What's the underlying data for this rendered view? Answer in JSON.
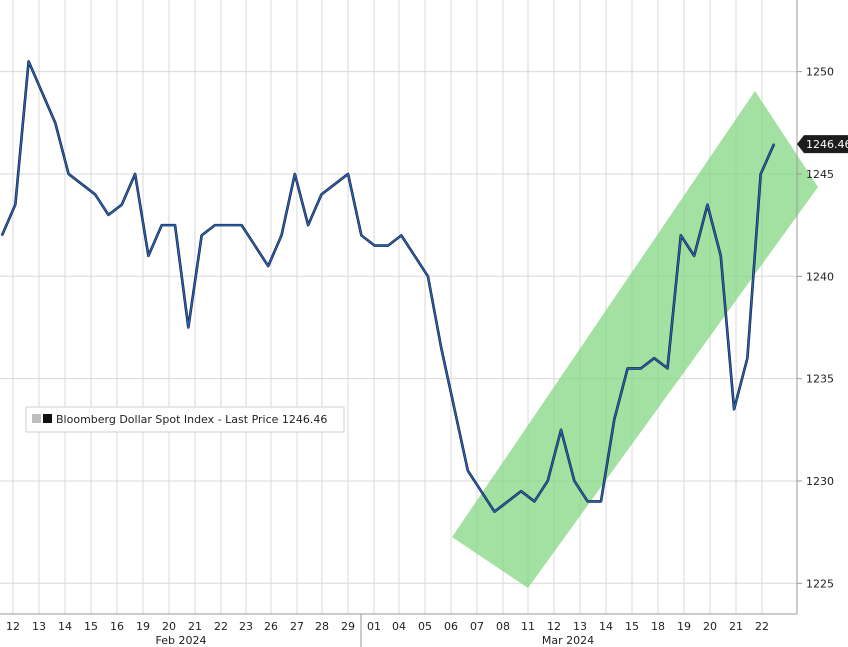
{
  "chart_data": {
    "type": "line",
    "series": [
      {
        "name": "Bloomberg Dollar Spot Index - Last Price",
        "color": "#2a62b8",
        "x": [
          "12",
          "13",
          "13",
          "14",
          "14",
          "15",
          "15",
          "16",
          "16",
          "19",
          "19",
          "20",
          "20",
          "21",
          "21",
          "22",
          "22",
          "23",
          "23",
          "26",
          "26",
          "27",
          "27",
          "28",
          "28",
          "29",
          "29",
          "01",
          "01",
          "04",
          "04",
          "05",
          "05",
          "06",
          "06",
          "07",
          "07",
          "08",
          "08",
          "11",
          "11",
          "12",
          "12",
          "13",
          "13",
          "14",
          "14",
          "15",
          "15",
          "18",
          "18",
          "19",
          "19",
          "20",
          "20",
          "21",
          "21",
          "22",
          "22"
        ],
        "values": [
          1242.0,
          1243.5,
          1250.5,
          1249.0,
          1247.5,
          1245.0,
          1244.5,
          1244.0,
          1243.0,
          1243.5,
          1245.0,
          1241.0,
          1242.5,
          1242.5,
          1237.5,
          1242.0,
          1242.5,
          1242.5,
          1242.5,
          1241.5,
          1240.5,
          1242.0,
          1245.0,
          1242.5,
          1244.0,
          1244.5,
          1245.0,
          1242.0,
          1241.5,
          1241.5,
          1242.0,
          1241.0,
          1240.0,
          1236.5,
          1233.5,
          1230.5,
          1229.5,
          1228.5,
          1229.0,
          1229.5,
          1229.0,
          1230.0,
          1232.5,
          1230.0,
          1229.0,
          1229.0,
          1233.0,
          1235.5,
          1235.5,
          1236.0,
          1235.5,
          1242.0,
          1241.0,
          1243.5,
          1241.0,
          1233.5,
          1236.0,
          1245.0,
          1246.46
        ]
      }
    ],
    "yticks": [
      1225,
      1230,
      1235,
      1240,
      1245,
      1250
    ],
    "ylim": [
      1223.5,
      1253.5
    ],
    "last_price_label": "1246.46",
    "x_day_labels": [
      "12",
      "13",
      "14",
      "15",
      "16",
      "19",
      "20",
      "21",
      "22",
      "23",
      "26",
      "27",
      "28",
      "29",
      "01",
      "04",
      "05",
      "06",
      "07",
      "08",
      "11",
      "12",
      "13",
      "14",
      "15",
      "18",
      "19",
      "20",
      "21",
      "22"
    ],
    "month_labels": [
      "Feb 2024",
      "Mar 2024"
    ],
    "legend": "Bloomberg Dollar Spot Index - Last Price 1246.46",
    "channel_color": "#7ed67e",
    "grid": true,
    "legend_position": "middle-left"
  }
}
